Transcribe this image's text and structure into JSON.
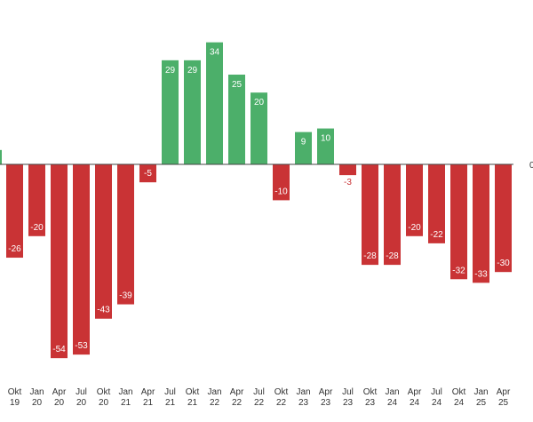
{
  "chart_data": {
    "type": "bar",
    "title": "",
    "xlabel": "",
    "ylabel": "",
    "zero_label": "0",
    "ylim": [
      -60,
      40
    ],
    "grid": false,
    "categories": [
      [
        "Okt",
        "19"
      ],
      [
        "Jan",
        "20"
      ],
      [
        "Apr",
        "20"
      ],
      [
        "Jul",
        "20"
      ],
      [
        "Okt",
        "20"
      ],
      [
        "Jan",
        "21"
      ],
      [
        "Apr",
        "21"
      ],
      [
        "Jul",
        "21"
      ],
      [
        "Okt",
        "21"
      ],
      [
        "Jan",
        "22"
      ],
      [
        "Apr",
        "22"
      ],
      [
        "Jul",
        "22"
      ],
      [
        "Okt",
        "22"
      ],
      [
        "Jan",
        "23"
      ],
      [
        "Apr",
        "23"
      ],
      [
        "Jul",
        "23"
      ],
      [
        "Okt",
        "23"
      ],
      [
        "Jan",
        "24"
      ],
      [
        "Apr",
        "24"
      ],
      [
        "Jul",
        "24"
      ],
      [
        "Okt",
        "24"
      ],
      [
        "Jan",
        "25"
      ],
      [
        "Apr",
        "25"
      ]
    ],
    "values": [
      -26,
      -20,
      -54,
      -53,
      -43,
      -39,
      -5,
      29,
      29,
      34,
      25,
      20,
      -10,
      9,
      10,
      -3,
      -28,
      -28,
      -20,
      -22,
      -32,
      -33,
      -30
    ],
    "leading_partial_value": 4,
    "colors": {
      "positive": "#4caf6a",
      "negative": "#c93335",
      "axis": "#444444",
      "tick_text": "#333333"
    }
  }
}
